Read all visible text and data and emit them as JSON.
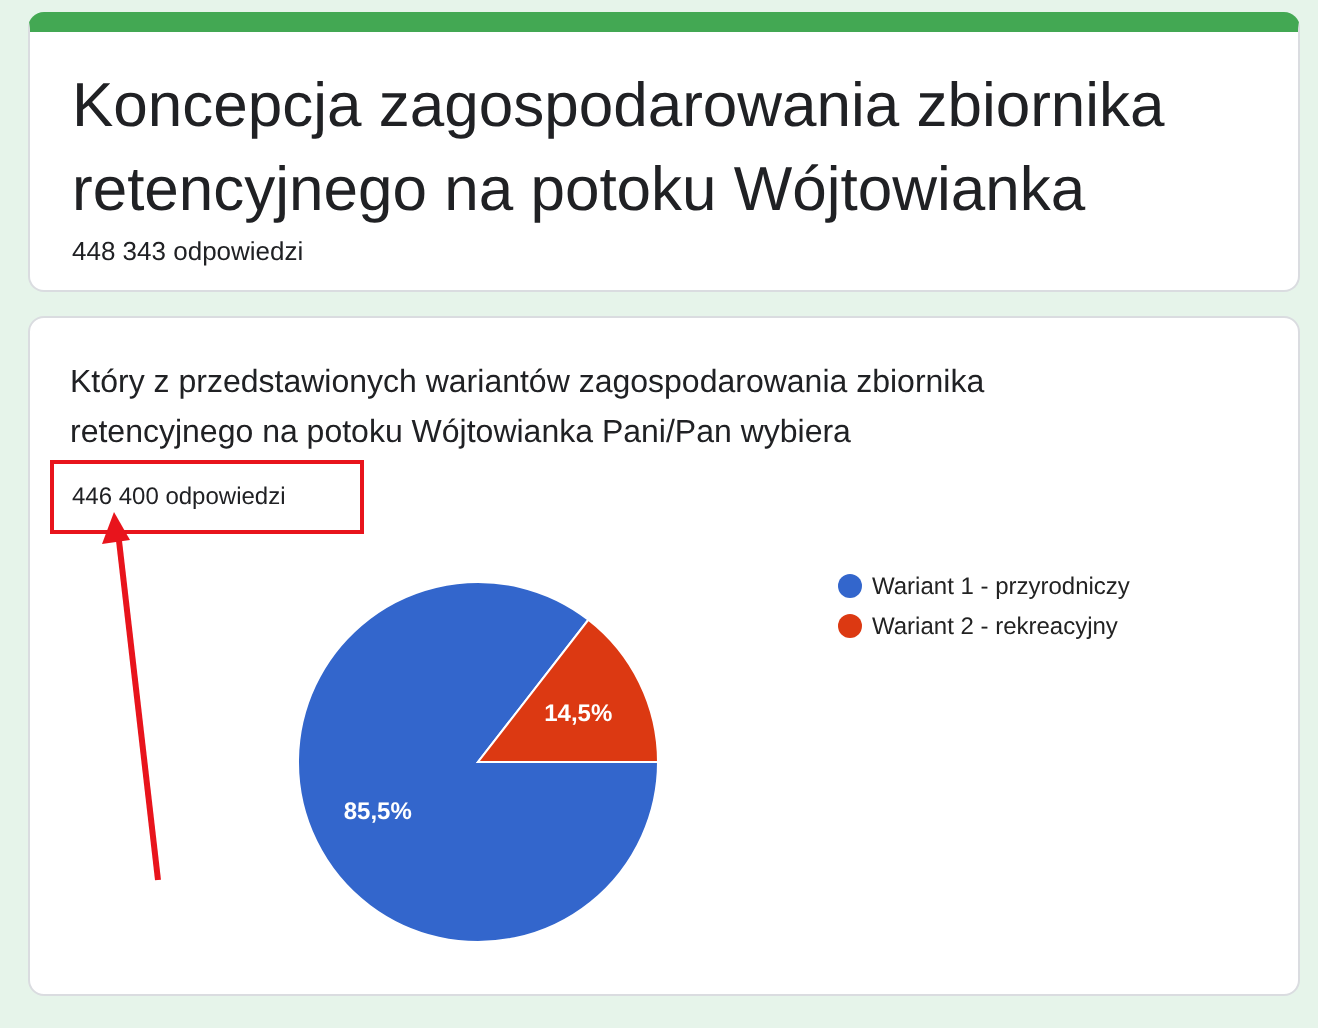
{
  "chart_data": {
    "type": "pie",
    "title": "Koncepcja zagospodarowania zbiornika retencyjnego na potoku Wójtowianka",
    "subtitle": "Który z przedstawionych wariantów zagospodarowania zbiornika retencyjnego na potoku Wójtowianka Pani/Pan wybiera",
    "annotations": [
      "448 343 odpowiedzi",
      "446 400 odpowiedzi"
    ],
    "categories": [
      "Wariant 1 - przyrodniczy",
      "Wariant 2 - rekreacyjny"
    ],
    "values": [
      85.5,
      14.5
    ],
    "colors": [
      "#3366cc",
      "#dc3912"
    ],
    "value_labels": [
      "85,5%",
      "14,5%"
    ],
    "legend": "right"
  }
}
